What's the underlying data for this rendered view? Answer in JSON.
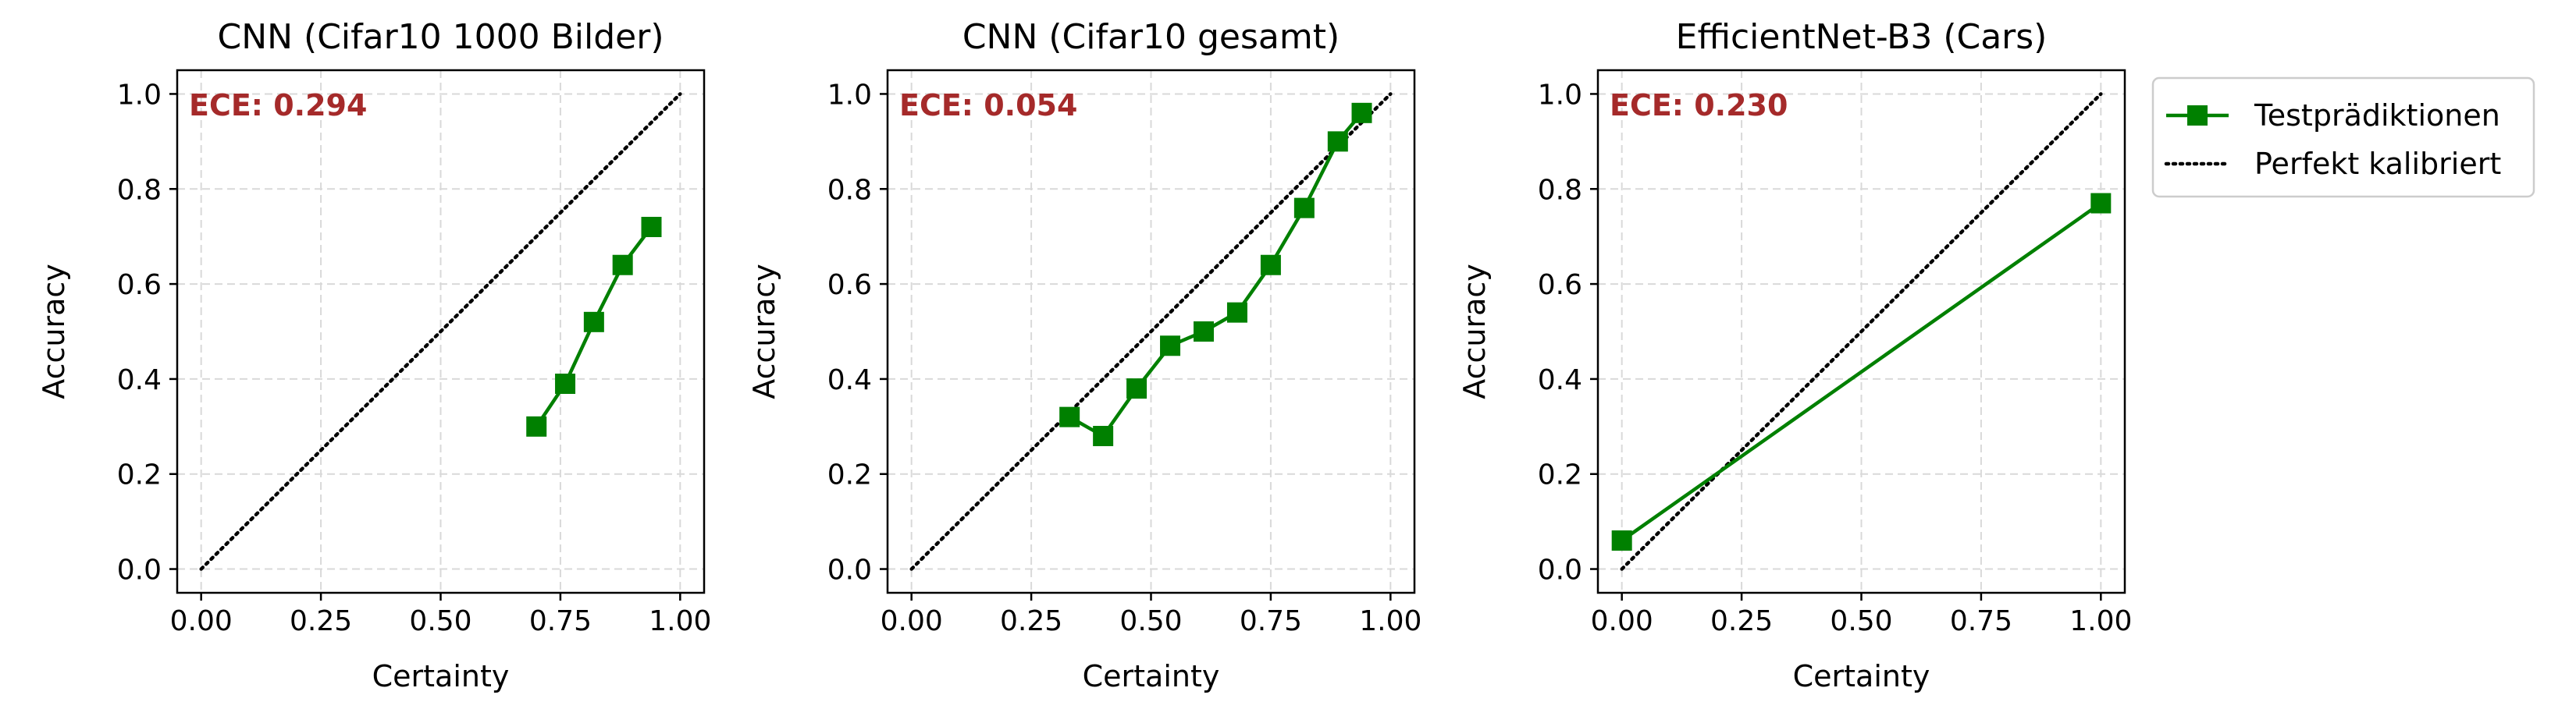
{
  "figure": {
    "legend": {
      "placement": "outside-right",
      "entries": [
        {
          "label": "Testprädiktionen",
          "style": "line-square-marker",
          "color": "#008000"
        },
        {
          "label": "Perfekt kalibriert",
          "style": "dotted-line",
          "color": "#000000"
        }
      ]
    }
  },
  "colors": {
    "series": "#008000",
    "diagonal": "#000000",
    "ece_text": "#a52a2a",
    "grid": "#d9d9d9",
    "axes": "#000000"
  },
  "chart_data": [
    {
      "type": "line",
      "title": "CNN (Cifar10 1000 Bilder)",
      "xlabel": "Certainty",
      "ylabel": "Accuracy",
      "annotation": "ECE: 0.294",
      "xlim": [
        -0.05,
        1.05
      ],
      "ylim": [
        -0.05,
        1.05
      ],
      "xticks": [
        "0.00",
        "0.25",
        "0.50",
        "0.75",
        "1.00"
      ],
      "yticks": [
        "0.0",
        "0.2",
        "0.4",
        "0.6",
        "0.8",
        "1.0"
      ],
      "grid": true,
      "series": [
        {
          "name": "Testprädiktionen",
          "x": [
            0.7,
            0.76,
            0.82,
            0.88,
            0.94
          ],
          "y": [
            0.3,
            0.39,
            0.52,
            0.64,
            0.72
          ]
        },
        {
          "name": "Perfekt kalibriert",
          "x": [
            0,
            1
          ],
          "y": [
            0,
            1
          ]
        }
      ]
    },
    {
      "type": "line",
      "title": "CNN (Cifar10 gesamt)",
      "xlabel": "Certainty",
      "ylabel": "Accuracy",
      "annotation": "ECE: 0.054",
      "xlim": [
        -0.05,
        1.05
      ],
      "ylim": [
        -0.05,
        1.05
      ],
      "xticks": [
        "0.00",
        "0.25",
        "0.50",
        "0.75",
        "1.00"
      ],
      "yticks": [
        "0.0",
        "0.2",
        "0.4",
        "0.6",
        "0.8",
        "1.0"
      ],
      "grid": true,
      "series": [
        {
          "name": "Testprädiktionen",
          "x": [
            0.33,
            0.4,
            0.47,
            0.54,
            0.61,
            0.68,
            0.75,
            0.82,
            0.89,
            0.94
          ],
          "y": [
            0.32,
            0.28,
            0.38,
            0.47,
            0.5,
            0.54,
            0.64,
            0.76,
            0.9,
            0.96
          ]
        },
        {
          "name": "Perfekt kalibriert",
          "x": [
            0,
            1
          ],
          "y": [
            0,
            1
          ]
        }
      ]
    },
    {
      "type": "line",
      "title": "EfficientNet-B3 (Cars)",
      "xlabel": "Certainty",
      "ylabel": "Accuracy",
      "annotation": "ECE: 0.230",
      "xlim": [
        -0.05,
        1.05
      ],
      "ylim": [
        -0.05,
        1.05
      ],
      "xticks": [
        "0.00",
        "0.25",
        "0.50",
        "0.75",
        "1.00"
      ],
      "yticks": [
        "0.0",
        "0.2",
        "0.4",
        "0.6",
        "0.8",
        "1.0"
      ],
      "grid": true,
      "series": [
        {
          "name": "Testprädiktionen",
          "x": [
            0.0,
            1.0
          ],
          "y": [
            0.06,
            0.77
          ]
        },
        {
          "name": "Perfekt kalibriert",
          "x": [
            0,
            1
          ],
          "y": [
            0,
            1
          ]
        }
      ]
    }
  ]
}
